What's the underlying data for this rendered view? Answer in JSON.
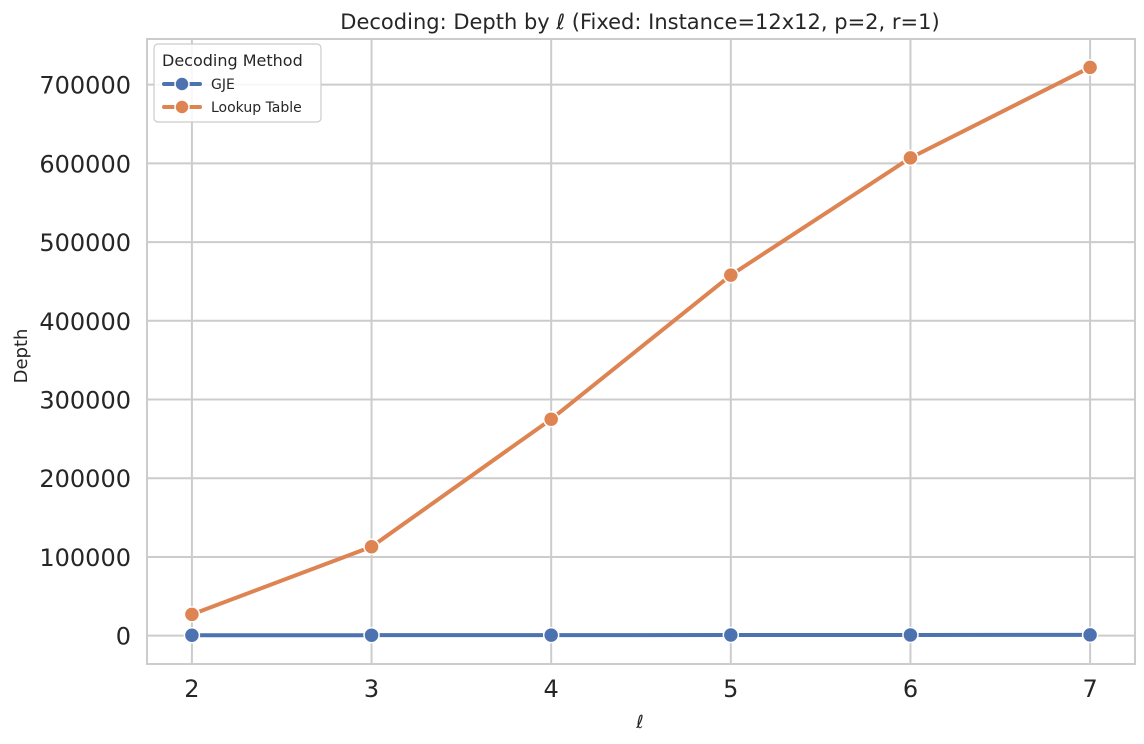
{
  "chart_data": {
    "type": "line",
    "title": "Decoding: Depth by ℓ (Fixed: Instance=12x12, p=2, r=1)",
    "xlabel": "ℓ",
    "ylabel": "Depth",
    "x": [
      2,
      3,
      4,
      5,
      6,
      7
    ],
    "xlim": [
      1.75,
      7.25
    ],
    "ylim": [
      -36000,
      758000
    ],
    "yticks": [
      0,
      100000,
      200000,
      300000,
      400000,
      500000,
      600000,
      700000
    ],
    "grid": true,
    "legend": {
      "title": "Decoding Method",
      "position": "top-left"
    },
    "series": [
      {
        "name": "GJE",
        "color": "#4c72b0",
        "values": [
          500,
          600,
          700,
          800,
          900,
          1000
        ]
      },
      {
        "name": "Lookup Table",
        "color": "#dd8452",
        "values": [
          27000,
          113000,
          275000,
          458000,
          607000,
          722000
        ]
      }
    ]
  }
}
